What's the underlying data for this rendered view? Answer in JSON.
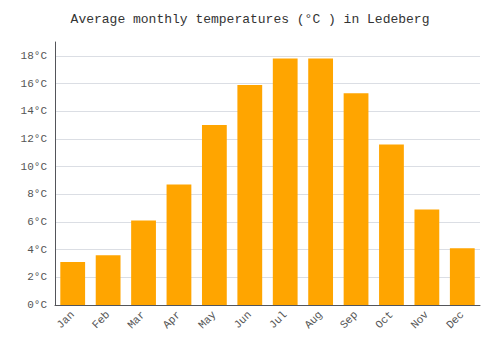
{
  "chart_data": {
    "type": "bar",
    "title": "Average monthly temperatures (°C ) in Ledeberg",
    "categories": [
      "Jan",
      "Feb",
      "Mar",
      "Apr",
      "May",
      "Jun",
      "Jul",
      "Aug",
      "Sep",
      "Oct",
      "Nov",
      "Dec"
    ],
    "values": [
      3.1,
      3.6,
      6.1,
      8.7,
      13.0,
      15.9,
      17.8,
      17.8,
      15.3,
      11.6,
      6.9,
      4.1
    ],
    "color": "#FFA500",
    "ylim": [
      0,
      19
    ],
    "yticks": [
      {
        "value": 0,
        "label": "0°C"
      },
      {
        "value": 2,
        "label": "2°C"
      },
      {
        "value": 4,
        "label": "4°C"
      },
      {
        "value": 6,
        "label": "6°C"
      },
      {
        "value": 8,
        "label": "8°C"
      },
      {
        "value": 10,
        "label": "10°C"
      },
      {
        "value": 12,
        "label": "12°C"
      },
      {
        "value": 14,
        "label": "14°C"
      },
      {
        "value": 16,
        "label": "16°C"
      },
      {
        "value": 18,
        "label": "18°C"
      }
    ],
    "grid": true
  }
}
